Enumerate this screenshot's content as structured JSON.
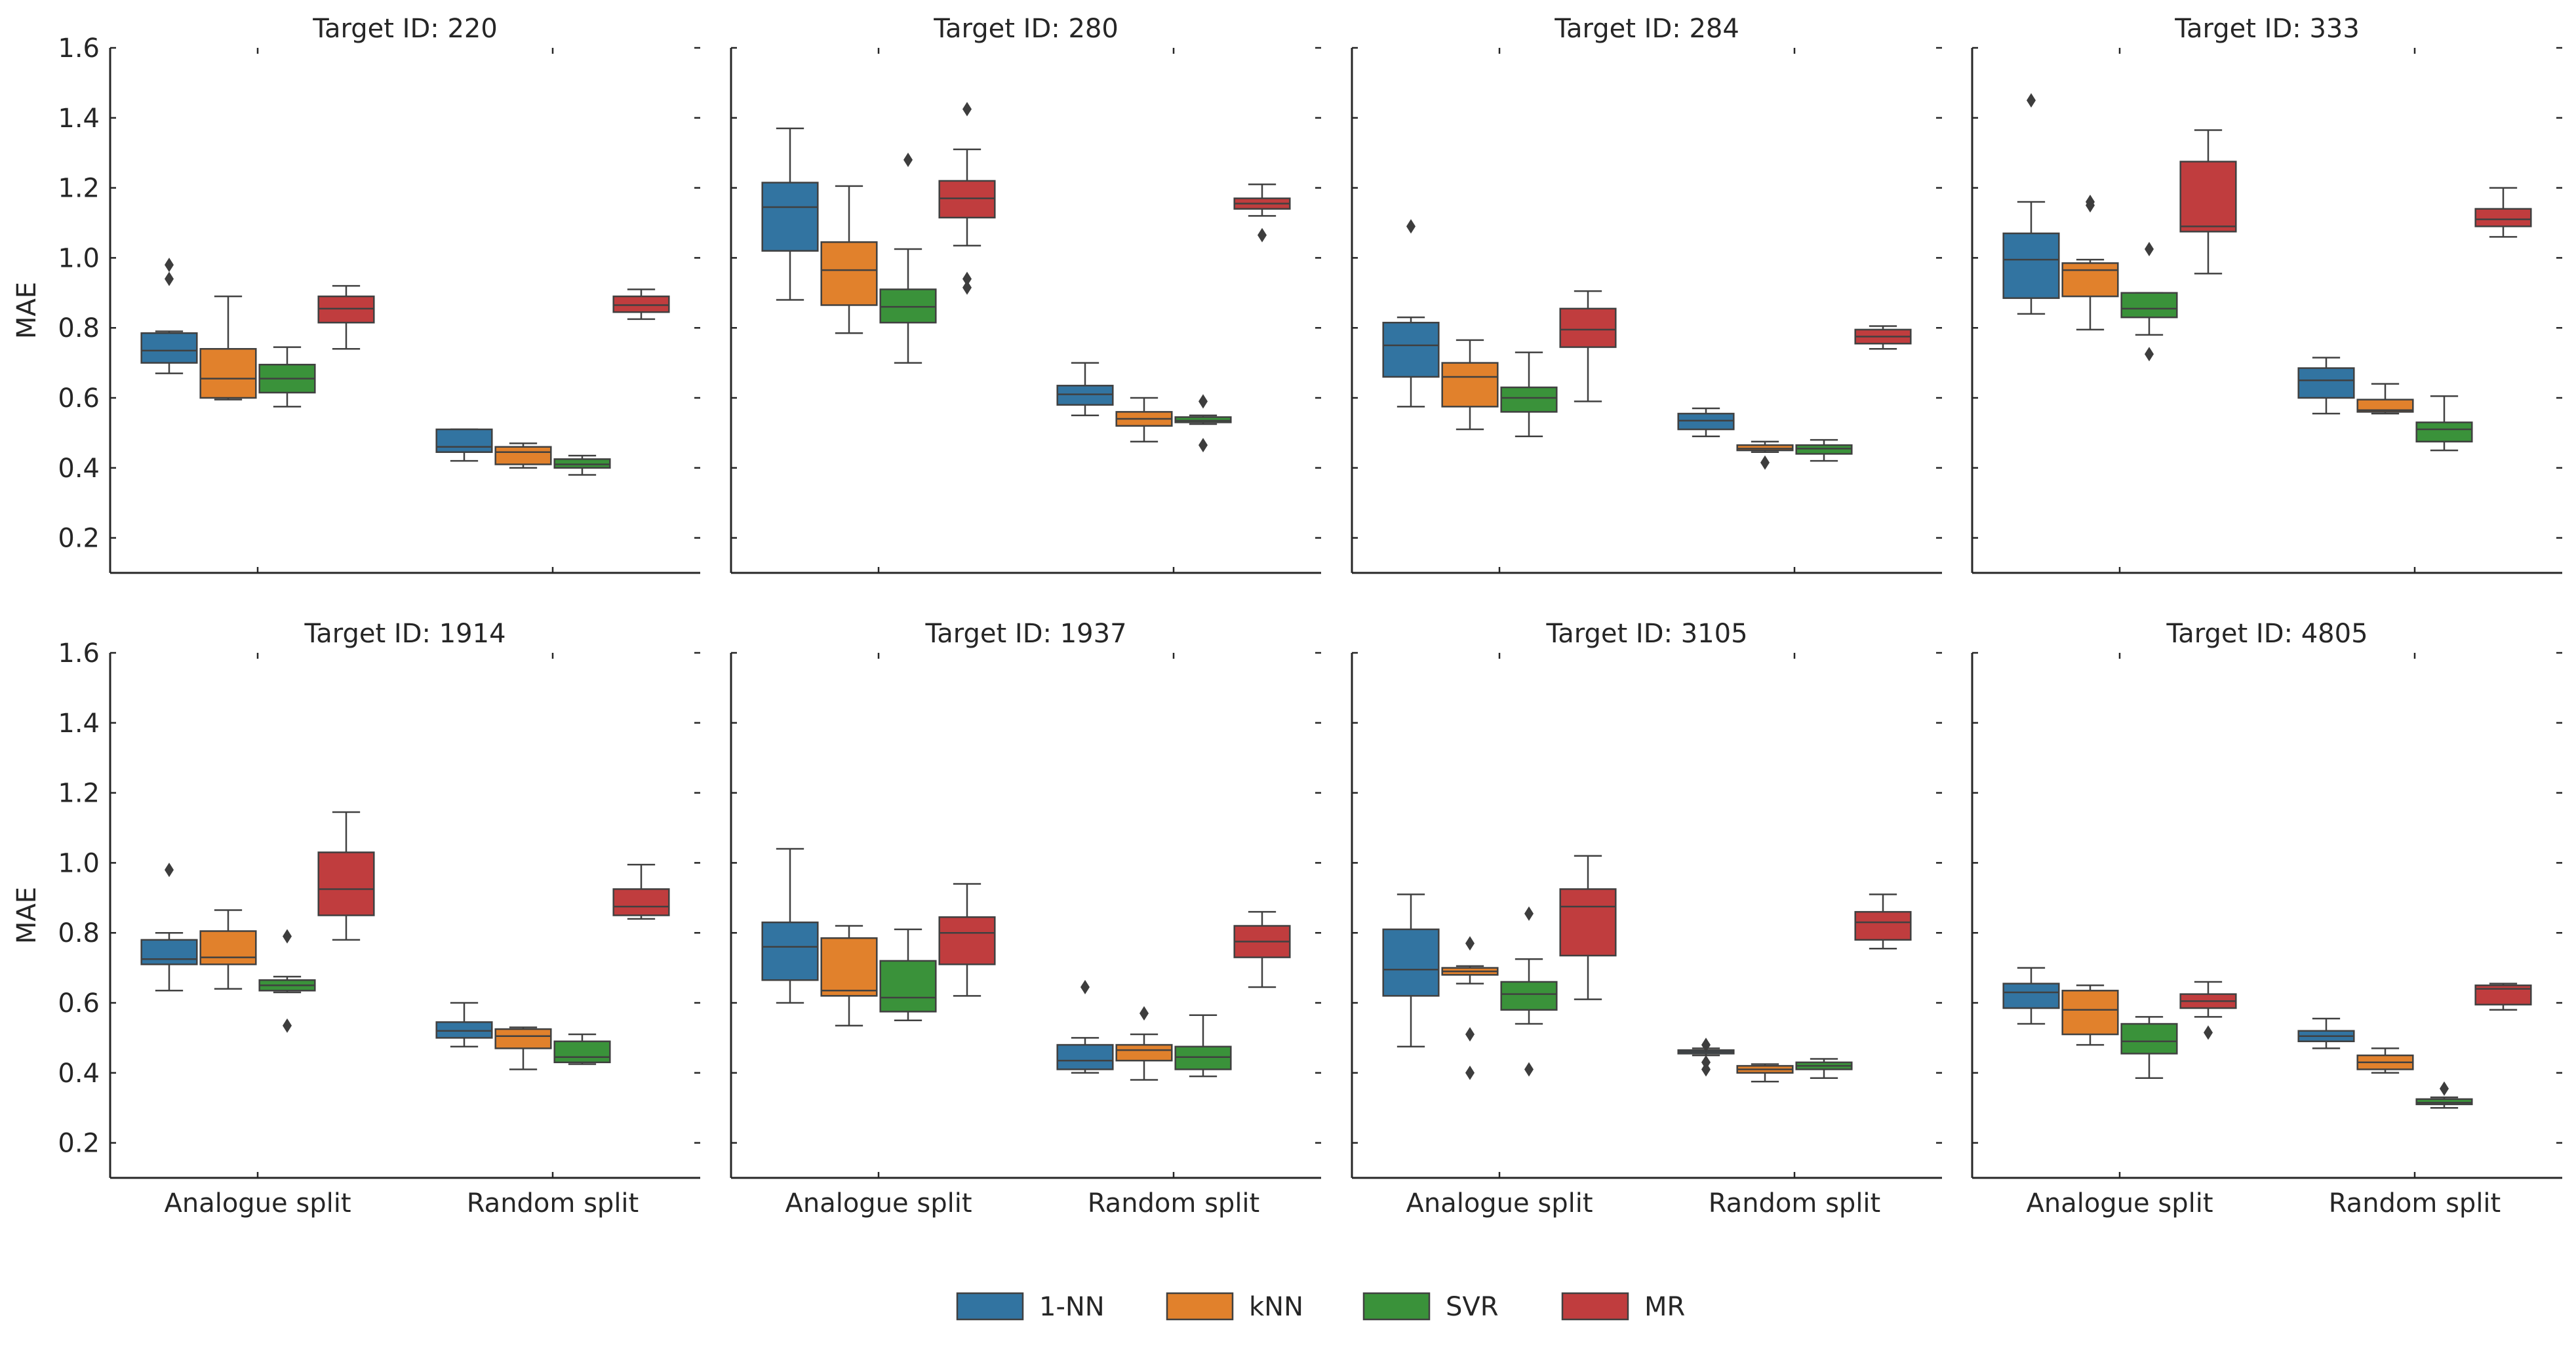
{
  "figure": {
    "ylabel": "MAE",
    "yticks": [
      "0.2",
      "0.4",
      "0.6",
      "0.8",
      "1.0",
      "1.2",
      "1.4",
      "1.6"
    ],
    "ylim": [
      0.1,
      1.6
    ],
    "groups": [
      "Analogue split",
      "Random split"
    ]
  },
  "legend": {
    "placement": "bottom-center",
    "items": [
      {
        "label": "1-NN",
        "color": "#3274a1"
      },
      {
        "label": "kNN",
        "color": "#e1812c"
      },
      {
        "label": "SVR",
        "color": "#3a923a"
      },
      {
        "label": "MR",
        "color": "#c03d3e"
      }
    ]
  },
  "chart_data": [
    {
      "type": "box",
      "title": "Target ID: 220",
      "categories": [
        "Analogue split",
        "Random split"
      ],
      "series": [
        {
          "name": "1-NN",
          "boxes": [
            {
              "whislo": 0.67,
              "q1": 0.7,
              "med": 0.735,
              "q3": 0.785,
              "whishi": 0.79,
              "fliers": [
                0.94,
                0.98
              ]
            },
            {
              "whislo": 0.42,
              "q1": 0.445,
              "med": 0.46,
              "q3": 0.51,
              "whishi": 0.51,
              "fliers": []
            }
          ]
        },
        {
          "name": "kNN",
          "boxes": [
            {
              "whislo": 0.595,
              "q1": 0.6,
              "med": 0.655,
              "q3": 0.74,
              "whishi": 0.89,
              "fliers": []
            },
            {
              "whislo": 0.4,
              "q1": 0.41,
              "med": 0.445,
              "q3": 0.46,
              "whishi": 0.47,
              "fliers": []
            }
          ]
        },
        {
          "name": "SVR",
          "boxes": [
            {
              "whislo": 0.575,
              "q1": 0.615,
              "med": 0.655,
              "q3": 0.695,
              "whishi": 0.745,
              "fliers": []
            },
            {
              "whislo": 0.38,
              "q1": 0.4,
              "med": 0.41,
              "q3": 0.425,
              "whishi": 0.435,
              "fliers": []
            }
          ]
        },
        {
          "name": "MR",
          "boxes": [
            {
              "whislo": 0.74,
              "q1": 0.815,
              "med": 0.855,
              "q3": 0.89,
              "whishi": 0.92,
              "fliers": []
            },
            {
              "whislo": 0.825,
              "q1": 0.845,
              "med": 0.865,
              "q3": 0.89,
              "whishi": 0.91,
              "fliers": []
            }
          ]
        }
      ]
    },
    {
      "type": "box",
      "title": "Target ID: 280",
      "categories": [
        "Analogue split",
        "Random split"
      ],
      "series": [
        {
          "name": "1-NN",
          "boxes": [
            {
              "whislo": 0.88,
              "q1": 1.02,
              "med": 1.145,
              "q3": 1.215,
              "whishi": 1.37,
              "fliers": []
            },
            {
              "whislo": 0.55,
              "q1": 0.58,
              "med": 0.61,
              "q3": 0.635,
              "whishi": 0.7,
              "fliers": []
            }
          ]
        },
        {
          "name": "kNN",
          "boxes": [
            {
              "whislo": 0.785,
              "q1": 0.865,
              "med": 0.965,
              "q3": 1.045,
              "whishi": 1.205,
              "fliers": []
            },
            {
              "whislo": 0.475,
              "q1": 0.52,
              "med": 0.54,
              "q3": 0.56,
              "whishi": 0.6,
              "fliers": []
            }
          ]
        },
        {
          "name": "SVR",
          "boxes": [
            {
              "whislo": 0.7,
              "q1": 0.815,
              "med": 0.86,
              "q3": 0.91,
              "whishi": 1.025,
              "fliers": [
                1.28
              ]
            },
            {
              "whislo": 0.525,
              "q1": 0.53,
              "med": 0.535,
              "q3": 0.545,
              "whishi": 0.55,
              "fliers": [
                0.465,
                0.59
              ]
            }
          ]
        },
        {
          "name": "MR",
          "boxes": [
            {
              "whislo": 1.035,
              "q1": 1.115,
              "med": 1.17,
              "q3": 1.22,
              "whishi": 1.31,
              "fliers": [
                0.915,
                0.94,
                1.425
              ]
            },
            {
              "whislo": 1.12,
              "q1": 1.14,
              "med": 1.155,
              "q3": 1.17,
              "whishi": 1.21,
              "fliers": [
                1.065
              ]
            }
          ]
        }
      ]
    },
    {
      "type": "box",
      "title": "Target ID: 284",
      "categories": [
        "Analogue split",
        "Random split"
      ],
      "series": [
        {
          "name": "1-NN",
          "boxes": [
            {
              "whislo": 0.575,
              "q1": 0.66,
              "med": 0.75,
              "q3": 0.815,
              "whishi": 0.83,
              "fliers": [
                1.09
              ]
            },
            {
              "whislo": 0.49,
              "q1": 0.51,
              "med": 0.535,
              "q3": 0.555,
              "whishi": 0.57,
              "fliers": []
            }
          ]
        },
        {
          "name": "kNN",
          "boxes": [
            {
              "whislo": 0.51,
              "q1": 0.575,
              "med": 0.66,
              "q3": 0.7,
              "whishi": 0.765,
              "fliers": []
            },
            {
              "whislo": 0.445,
              "q1": 0.45,
              "med": 0.455,
              "q3": 0.465,
              "whishi": 0.475,
              "fliers": [
                0.415
              ]
            }
          ]
        },
        {
          "name": "SVR",
          "boxes": [
            {
              "whislo": 0.49,
              "q1": 0.56,
              "med": 0.6,
              "q3": 0.63,
              "whishi": 0.73,
              "fliers": []
            },
            {
              "whislo": 0.42,
              "q1": 0.44,
              "med": 0.455,
              "q3": 0.465,
              "whishi": 0.48,
              "fliers": []
            }
          ]
        },
        {
          "name": "MR",
          "boxes": [
            {
              "whislo": 0.59,
              "q1": 0.745,
              "med": 0.795,
              "q3": 0.855,
              "whishi": 0.905,
              "fliers": []
            },
            {
              "whislo": 0.74,
              "q1": 0.755,
              "med": 0.775,
              "q3": 0.795,
              "whishi": 0.805,
              "fliers": []
            }
          ]
        }
      ]
    },
    {
      "type": "box",
      "title": "Target ID: 333",
      "categories": [
        "Analogue split",
        "Random split"
      ],
      "series": [
        {
          "name": "1-NN",
          "boxes": [
            {
              "whislo": 0.84,
              "q1": 0.885,
              "med": 0.995,
              "q3": 1.07,
              "whishi": 1.16,
              "fliers": [
                1.45
              ]
            },
            {
              "whislo": 0.555,
              "q1": 0.6,
              "med": 0.65,
              "q3": 0.685,
              "whishi": 0.715,
              "fliers": []
            }
          ]
        },
        {
          "name": "kNN",
          "boxes": [
            {
              "whislo": 0.795,
              "q1": 0.89,
              "med": 0.965,
              "q3": 0.985,
              "whishi": 0.995,
              "fliers": [
                1.15,
                1.16
              ]
            },
            {
              "whislo": 0.555,
              "q1": 0.56,
              "med": 0.565,
              "q3": 0.595,
              "whishi": 0.64,
              "fliers": []
            }
          ]
        },
        {
          "name": "SVR",
          "boxes": [
            {
              "whislo": 0.78,
              "q1": 0.83,
              "med": 0.855,
              "q3": 0.9,
              "whishi": 0.9,
              "fliers": [
                0.725,
                1.025
              ]
            },
            {
              "whislo": 0.45,
              "q1": 0.475,
              "med": 0.51,
              "q3": 0.53,
              "whishi": 0.605,
              "fliers": []
            }
          ]
        },
        {
          "name": "MR",
          "boxes": [
            {
              "whislo": 0.955,
              "q1": 1.075,
              "med": 1.09,
              "q3": 1.275,
              "whishi": 1.365,
              "fliers": []
            },
            {
              "whislo": 1.06,
              "q1": 1.09,
              "med": 1.11,
              "q3": 1.14,
              "whishi": 1.2,
              "fliers": []
            }
          ]
        }
      ]
    },
    {
      "type": "box",
      "title": "Target ID: 1914",
      "categories": [
        "Analogue split",
        "Random split"
      ],
      "series": [
        {
          "name": "1-NN",
          "boxes": [
            {
              "whislo": 0.635,
              "q1": 0.71,
              "med": 0.725,
              "q3": 0.78,
              "whishi": 0.8,
              "fliers": [
                0.98
              ]
            },
            {
              "whislo": 0.475,
              "q1": 0.5,
              "med": 0.52,
              "q3": 0.545,
              "whishi": 0.6,
              "fliers": []
            }
          ]
        },
        {
          "name": "kNN",
          "boxes": [
            {
              "whislo": 0.64,
              "q1": 0.71,
              "med": 0.73,
              "q3": 0.805,
              "whishi": 0.865,
              "fliers": []
            },
            {
              "whislo": 0.41,
              "q1": 0.47,
              "med": 0.505,
              "q3": 0.525,
              "whishi": 0.53,
              "fliers": []
            }
          ]
        },
        {
          "name": "SVR",
          "boxes": [
            {
              "whislo": 0.63,
              "q1": 0.635,
              "med": 0.65,
              "q3": 0.665,
              "whishi": 0.675,
              "fliers": [
                0.535,
                0.79
              ]
            },
            {
              "whislo": 0.425,
              "q1": 0.43,
              "med": 0.445,
              "q3": 0.49,
              "whishi": 0.51,
              "fliers": []
            }
          ]
        },
        {
          "name": "MR",
          "boxes": [
            {
              "whislo": 0.78,
              "q1": 0.85,
              "med": 0.925,
              "q3": 1.03,
              "whishi": 1.145,
              "fliers": []
            },
            {
              "whislo": 0.84,
              "q1": 0.85,
              "med": 0.875,
              "q3": 0.925,
              "whishi": 0.995,
              "fliers": []
            }
          ]
        }
      ]
    },
    {
      "type": "box",
      "title": "Target ID: 1937",
      "categories": [
        "Analogue split",
        "Random split"
      ],
      "series": [
        {
          "name": "1-NN",
          "boxes": [
            {
              "whislo": 0.6,
              "q1": 0.665,
              "med": 0.76,
              "q3": 0.83,
              "whishi": 1.04,
              "fliers": []
            },
            {
              "whislo": 0.4,
              "q1": 0.41,
              "med": 0.435,
              "q3": 0.48,
              "whishi": 0.5,
              "fliers": [
                0.645
              ]
            }
          ]
        },
        {
          "name": "kNN",
          "boxes": [
            {
              "whislo": 0.535,
              "q1": 0.62,
              "med": 0.635,
              "q3": 0.785,
              "whishi": 0.82,
              "fliers": []
            },
            {
              "whislo": 0.38,
              "q1": 0.435,
              "med": 0.465,
              "q3": 0.48,
              "whishi": 0.51,
              "fliers": [
                0.57
              ]
            }
          ]
        },
        {
          "name": "SVR",
          "boxes": [
            {
              "whislo": 0.55,
              "q1": 0.575,
              "med": 0.615,
              "q3": 0.72,
              "whishi": 0.81,
              "fliers": []
            },
            {
              "whislo": 0.39,
              "q1": 0.41,
              "med": 0.445,
              "q3": 0.475,
              "whishi": 0.565,
              "fliers": []
            }
          ]
        },
        {
          "name": "MR",
          "boxes": [
            {
              "whislo": 0.62,
              "q1": 0.71,
              "med": 0.8,
              "q3": 0.845,
              "whishi": 0.94,
              "fliers": []
            },
            {
              "whislo": 0.645,
              "q1": 0.73,
              "med": 0.775,
              "q3": 0.82,
              "whishi": 0.86,
              "fliers": []
            }
          ]
        }
      ]
    },
    {
      "type": "box",
      "title": "Target ID: 3105",
      "categories": [
        "Analogue split",
        "Random split"
      ],
      "series": [
        {
          "name": "1-NN",
          "boxes": [
            {
              "whislo": 0.475,
              "q1": 0.62,
              "med": 0.695,
              "q3": 0.81,
              "whishi": 0.91,
              "fliers": []
            },
            {
              "whislo": 0.45,
              "q1": 0.455,
              "med": 0.46,
              "q3": 0.465,
              "whishi": 0.47,
              "fliers": [
                0.41,
                0.43,
                0.48
              ]
            }
          ]
        },
        {
          "name": "kNN",
          "boxes": [
            {
              "whislo": 0.655,
              "q1": 0.68,
              "med": 0.69,
              "q3": 0.7,
              "whishi": 0.705,
              "fliers": [
                0.4,
                0.51,
                0.77
              ]
            },
            {
              "whislo": 0.375,
              "q1": 0.4,
              "med": 0.41,
              "q3": 0.42,
              "whishi": 0.425,
              "fliers": []
            }
          ]
        },
        {
          "name": "SVR",
          "boxes": [
            {
              "whislo": 0.54,
              "q1": 0.58,
              "med": 0.625,
              "q3": 0.66,
              "whishi": 0.725,
              "fliers": [
                0.41,
                0.855
              ]
            },
            {
              "whislo": 0.385,
              "q1": 0.41,
              "med": 0.42,
              "q3": 0.43,
              "whishi": 0.44,
              "fliers": []
            }
          ]
        },
        {
          "name": "MR",
          "boxes": [
            {
              "whislo": 0.61,
              "q1": 0.735,
              "med": 0.875,
              "q3": 0.925,
              "whishi": 1.02,
              "fliers": []
            },
            {
              "whislo": 0.755,
              "q1": 0.78,
              "med": 0.83,
              "q3": 0.86,
              "whishi": 0.91,
              "fliers": []
            }
          ]
        }
      ]
    },
    {
      "type": "box",
      "title": "Target ID: 4805",
      "categories": [
        "Analogue split",
        "Random split"
      ],
      "series": [
        {
          "name": "1-NN",
          "boxes": [
            {
              "whislo": 0.54,
              "q1": 0.585,
              "med": 0.63,
              "q3": 0.655,
              "whishi": 0.7,
              "fliers": []
            },
            {
              "whislo": 0.47,
              "q1": 0.49,
              "med": 0.505,
              "q3": 0.52,
              "whishi": 0.555,
              "fliers": []
            }
          ]
        },
        {
          "name": "kNN",
          "boxes": [
            {
              "whislo": 0.48,
              "q1": 0.51,
              "med": 0.58,
              "q3": 0.635,
              "whishi": 0.65,
              "fliers": []
            },
            {
              "whislo": 0.4,
              "q1": 0.41,
              "med": 0.43,
              "q3": 0.45,
              "whishi": 0.47,
              "fliers": []
            }
          ]
        },
        {
          "name": "SVR",
          "boxes": [
            {
              "whislo": 0.385,
              "q1": 0.455,
              "med": 0.49,
              "q3": 0.54,
              "whishi": 0.56,
              "fliers": []
            },
            {
              "whislo": 0.3,
              "q1": 0.31,
              "med": 0.315,
              "q3": 0.325,
              "whishi": 0.33,
              "fliers": [
                0.355
              ]
            }
          ]
        },
        {
          "name": "MR",
          "boxes": [
            {
              "whislo": 0.56,
              "q1": 0.585,
              "med": 0.605,
              "q3": 0.625,
              "whishi": 0.66,
              "fliers": [
                0.515
              ]
            },
            {
              "whislo": 0.58,
              "q1": 0.595,
              "med": 0.64,
              "q3": 0.65,
              "whishi": 0.655,
              "fliers": []
            }
          ]
        }
      ]
    }
  ]
}
